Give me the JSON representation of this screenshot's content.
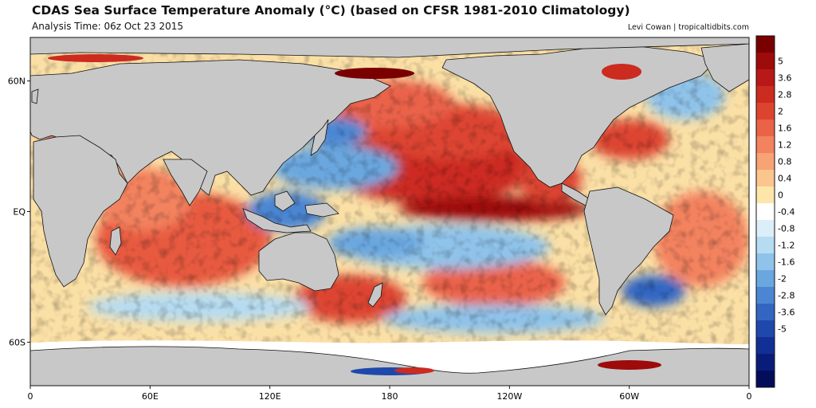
{
  "header": {
    "title": "CDAS Sea Surface Temperature Anomaly (°C) (based on CFSR 1981-2010 Climatology)",
    "analysis_time": "Analysis Time: 06z Oct 23 2015",
    "credit": "Levi Cowan | tropicaltidbits.com"
  },
  "map": {
    "projection": "equirectangular",
    "lon_range": [
      0,
      360
    ],
    "lat_range": [
      -80,
      80
    ],
    "land_color": "#c8c8c8",
    "coast_color": "#111111",
    "lat_labels": [
      {
        "text": "60N",
        "lat": 60
      },
      {
        "text": "EQ",
        "lat": 0
      },
      {
        "text": "60S",
        "lat": -60
      }
    ],
    "lon_labels": [
      {
        "text": "0",
        "lon": 0
      },
      {
        "text": "60E",
        "lon": 60
      },
      {
        "text": "120E",
        "lon": 120
      },
      {
        "text": "180",
        "lon": 180
      },
      {
        "text": "120W",
        "lon": 240
      },
      {
        "text": "60W",
        "lon": 300
      },
      {
        "text": "0",
        "lon": 360
      }
    ]
  },
  "colorbar": {
    "labels": [
      "5",
      "3.6",
      "2.8",
      "2",
      "1.6",
      "1.2",
      "0.8",
      "0.4",
      "0",
      "-0.4",
      "-0.8",
      "-1.2",
      "-1.6",
      "-2",
      "-2.8",
      "-3.6",
      "-5"
    ],
    "colors": [
      "#7a0000",
      "#9e0b0b",
      "#b81818",
      "#cc2b20",
      "#dd4430",
      "#ea6248",
      "#f3825e",
      "#f7a374",
      "#fbc58e",
      "#fee6aa",
      "#ffffff",
      "#dbeef9",
      "#b6dcf2",
      "#8fc3ea",
      "#6ba7df",
      "#4c86d3",
      "#3266c2",
      "#1f48ad",
      "#122f95",
      "#0a1c7a",
      "#040d5a"
    ]
  }
}
